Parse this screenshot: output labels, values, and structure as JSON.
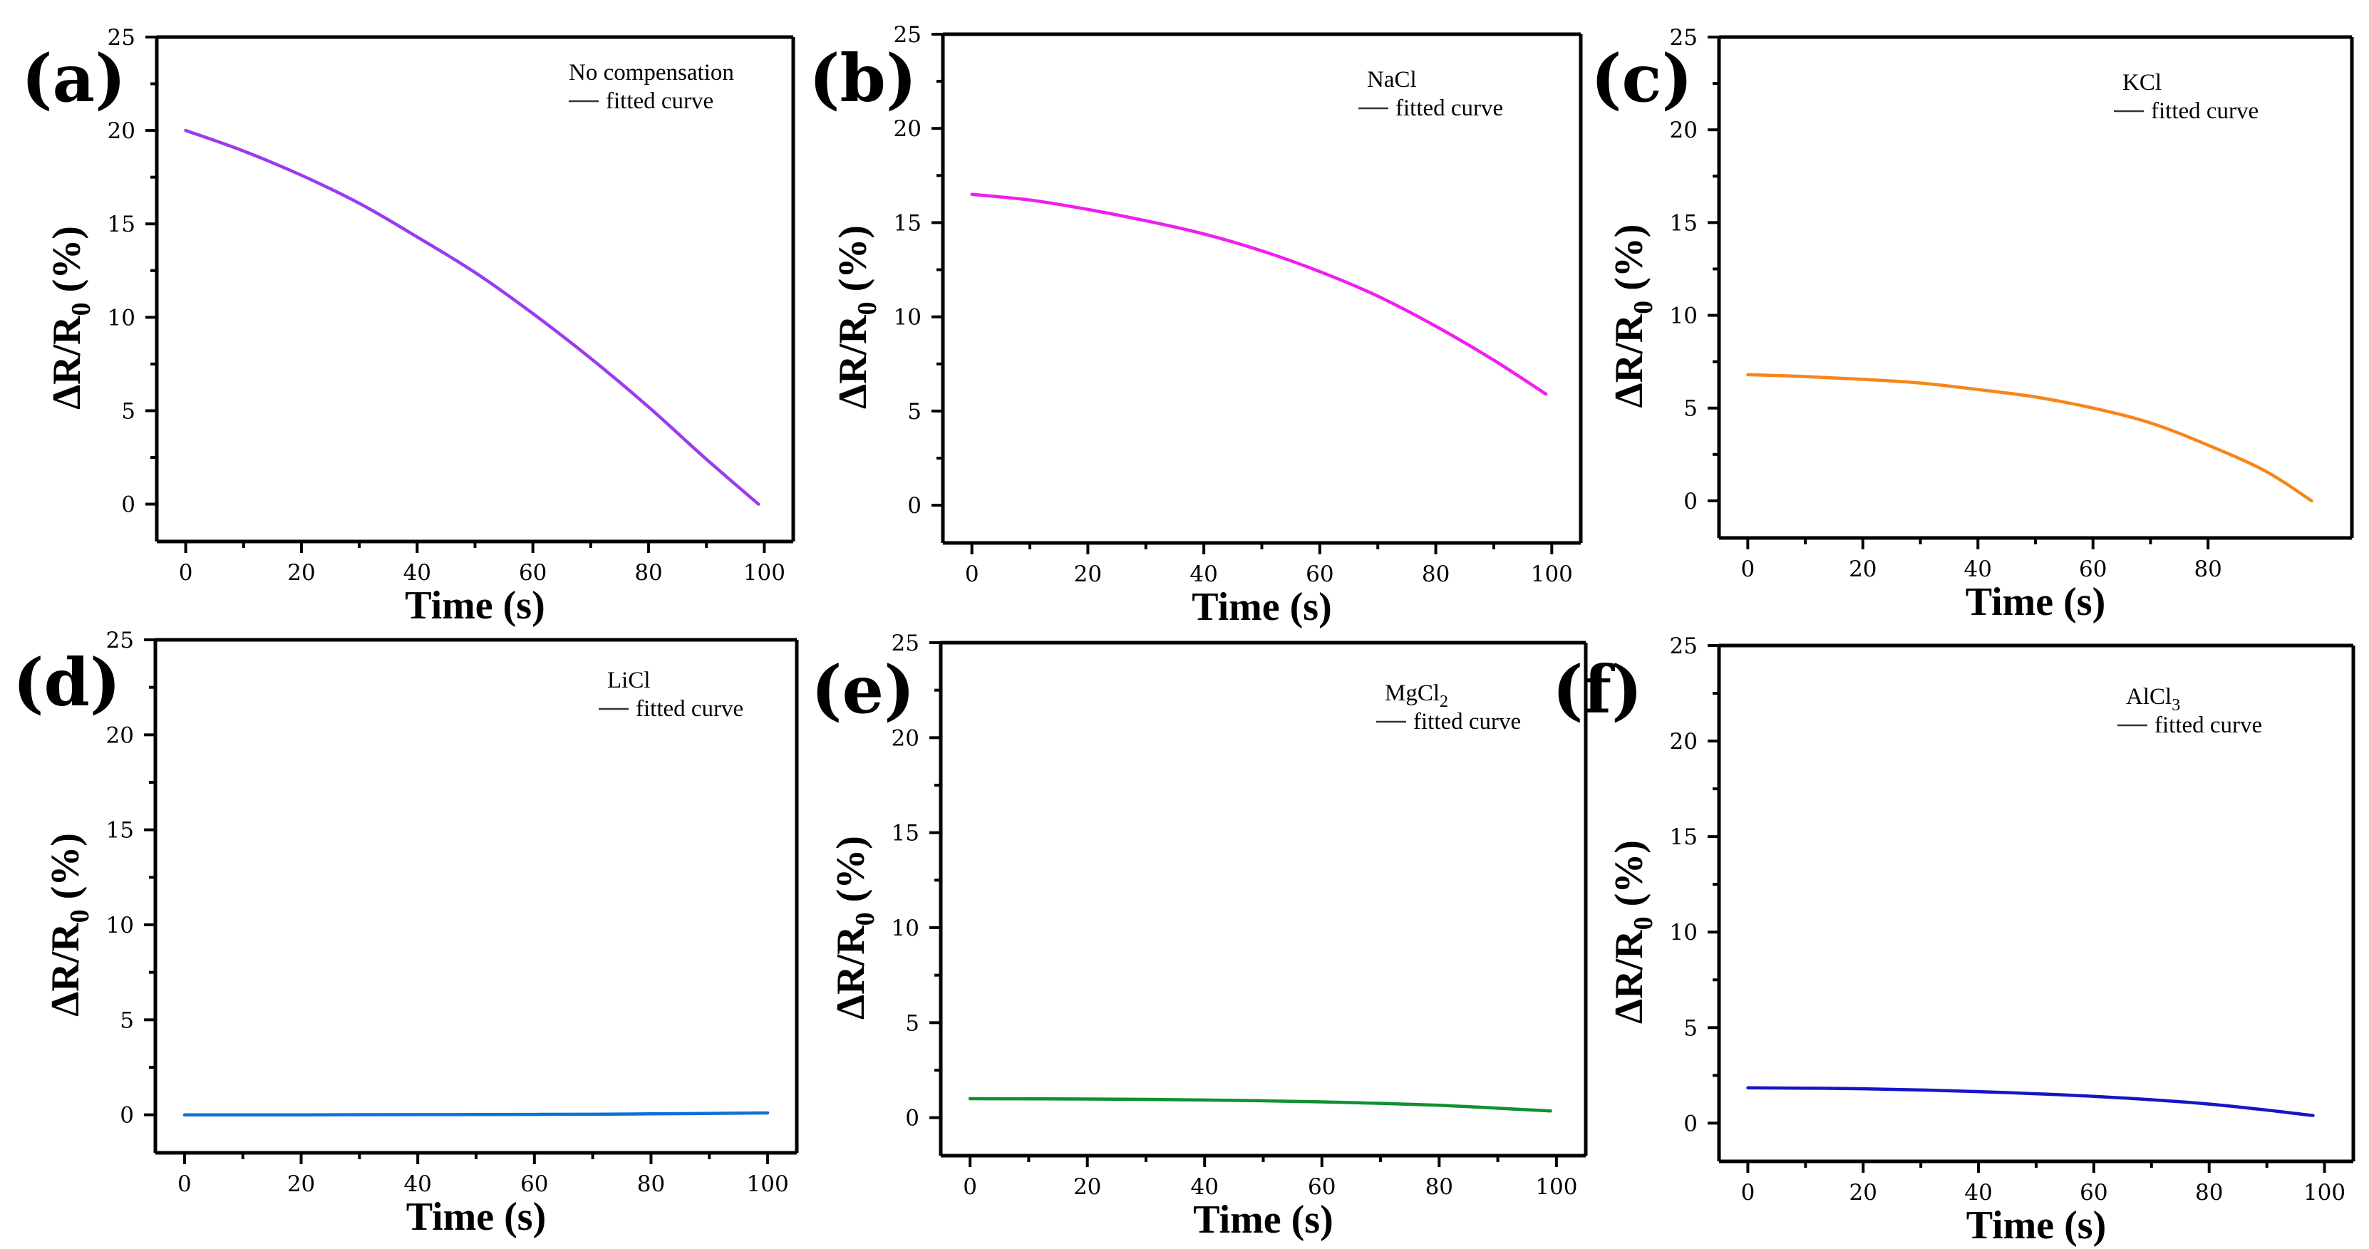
{
  "figure": {
    "colors": {
      "axis": "#000000",
      "background": "#ffffff"
    }
  },
  "chart_data": [
    {
      "panel_label": "(a)",
      "type": "line",
      "legend": {
        "title": "No compensation",
        "sub": "",
        "line_label": "fitted curve"
      },
      "xlabel": "Time (s)",
      "ylabel_main": "ΔR/R",
      "ylabel_sub": "0",
      "ylabel_tail": " (%)",
      "xlim": [
        -5,
        105
      ],
      "ylim": [
        -2,
        25
      ],
      "x_ticks": [
        0,
        20,
        40,
        60,
        80,
        100
      ],
      "y_ticks": [
        0,
        5,
        10,
        15,
        20,
        25
      ],
      "color": "#9b3bf0",
      "series": [
        {
          "name": "No compensation",
          "x": [
            0,
            10,
            20,
            30,
            40,
            50,
            60,
            70,
            80,
            90,
            99
          ],
          "y": [
            20.0,
            18.9,
            17.6,
            16.1,
            14.3,
            12.4,
            10.2,
            7.8,
            5.2,
            2.4,
            0.0
          ]
        }
      ]
    },
    {
      "panel_label": "(b)",
      "type": "line",
      "legend": {
        "title": "NaCl",
        "sub": "",
        "line_label": "fitted curve"
      },
      "xlabel": "Time (s)",
      "ylabel_main": "ΔR/R",
      "ylabel_sub": "0",
      "ylabel_tail": " (%)",
      "xlim": [
        -5,
        105
      ],
      "ylim": [
        -2,
        25
      ],
      "x_ticks": [
        0,
        20,
        40,
        60,
        80,
        100
      ],
      "y_ticks": [
        0,
        5,
        10,
        15,
        20,
        25
      ],
      "color": "#f01ef0",
      "series": [
        {
          "name": "NaCl",
          "x": [
            0,
            10,
            20,
            30,
            40,
            50,
            60,
            70,
            80,
            90,
            99
          ],
          "y": [
            16.5,
            16.2,
            15.7,
            15.1,
            14.4,
            13.5,
            12.4,
            11.1,
            9.5,
            7.7,
            5.9
          ]
        }
      ]
    },
    {
      "panel_label": "(c)",
      "type": "line",
      "legend": {
        "title": "KCl",
        "sub": "",
        "line_label": "fitted curve"
      },
      "xlabel": "Time (s)",
      "ylabel_main": "ΔR/R",
      "ylabel_sub": "0",
      "ylabel_tail": " (%)",
      "xlim": [
        -5,
        105
      ],
      "ylim": [
        -2,
        25
      ],
      "x_ticks": [
        0,
        20,
        40,
        60,
        80
      ],
      "y_ticks": [
        0,
        5,
        10,
        15,
        20,
        25
      ],
      "color": "#f7861a",
      "series": [
        {
          "name": "KCl",
          "x": [
            0,
            10,
            20,
            30,
            40,
            50,
            60,
            70,
            80,
            90,
            98
          ],
          "y": [
            6.8,
            6.7,
            6.55,
            6.35,
            6.0,
            5.6,
            5.0,
            4.2,
            3.0,
            1.6,
            0.0
          ]
        }
      ]
    },
    {
      "panel_label": "(d)",
      "type": "line",
      "legend": {
        "title": "LiCl",
        "sub": "",
        "line_label": "fitted curve"
      },
      "xlabel": "Time (s)",
      "ylabel_main": "ΔR/R",
      "ylabel_sub": "0",
      "ylabel_tail": " (%)",
      "xlim": [
        -5,
        105
      ],
      "ylim": [
        -2,
        25
      ],
      "x_ticks": [
        0,
        20,
        40,
        60,
        80,
        100
      ],
      "y_ticks": [
        0,
        5,
        10,
        15,
        20,
        25
      ],
      "color": "#1170d6",
      "series": [
        {
          "name": "LiCl",
          "x": [
            0,
            20,
            40,
            60,
            80,
            100
          ],
          "y": [
            0.0,
            0.0,
            0.01,
            0.02,
            0.05,
            0.1
          ]
        }
      ]
    },
    {
      "panel_label": "(e)",
      "type": "line",
      "legend": {
        "title": "MgCl",
        "sub": "2",
        "line_label": "fitted curve"
      },
      "xlabel": "Time (s)",
      "ylabel_main": "ΔR/R",
      "ylabel_sub": "0",
      "ylabel_tail": " (%)",
      "xlim": [
        -5,
        105
      ],
      "ylim": [
        -2,
        25
      ],
      "x_ticks": [
        0,
        20,
        40,
        60,
        80,
        100
      ],
      "y_ticks": [
        0,
        5,
        10,
        15,
        20,
        25
      ],
      "color": "#109030",
      "series": [
        {
          "name": "MgCl2",
          "x": [
            0,
            20,
            40,
            60,
            80,
            99
          ],
          "y": [
            1.0,
            0.98,
            0.93,
            0.83,
            0.65,
            0.35
          ]
        }
      ]
    },
    {
      "panel_label": "(f)",
      "type": "line",
      "legend": {
        "title": "AlCl",
        "sub": "3",
        "line_label": "fitted curve"
      },
      "xlabel": "Time (s)",
      "ylabel_main": "ΔR/R",
      "ylabel_sub": "0",
      "ylabel_tail": " (%)",
      "xlim": [
        -5,
        105
      ],
      "ylim": [
        -2,
        25
      ],
      "x_ticks": [
        0,
        20,
        40,
        60,
        80,
        100
      ],
      "y_ticks": [
        0,
        5,
        10,
        15,
        20,
        25
      ],
      "color": "#1515c8",
      "series": [
        {
          "name": "AlCl3",
          "x": [
            0,
            20,
            40,
            60,
            80,
            98
          ],
          "y": [
            1.85,
            1.8,
            1.65,
            1.4,
            1.0,
            0.4
          ]
        }
      ]
    }
  ]
}
